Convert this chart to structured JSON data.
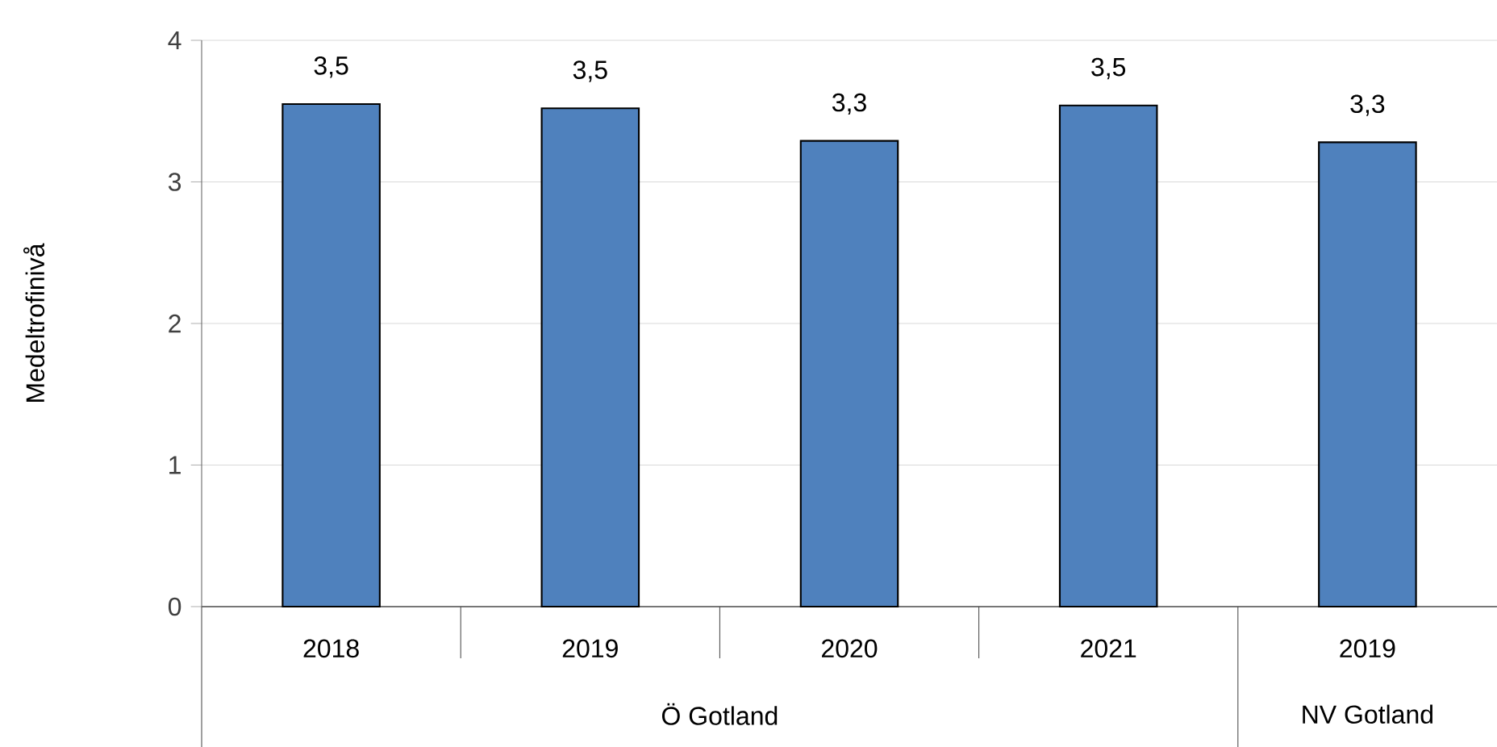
{
  "chart_data": {
    "type": "bar",
    "ylabel": "Medeltrofinivå",
    "categories": [
      "2018",
      "2019",
      "2020",
      "2021",
      "2019"
    ],
    "values": [
      3.55,
      3.52,
      3.29,
      3.54,
      3.28
    ],
    "value_labels": [
      "3,5",
      "3,5",
      "3,3",
      "3,5",
      "3,3"
    ],
    "color": "#4f81bd",
    "ylim": [
      0,
      4
    ],
    "yticks": [
      0,
      1,
      2,
      3,
      4
    ],
    "grid": "y",
    "annotations": [
      "Ö Gotland",
      "NV Gotland"
    ]
  }
}
